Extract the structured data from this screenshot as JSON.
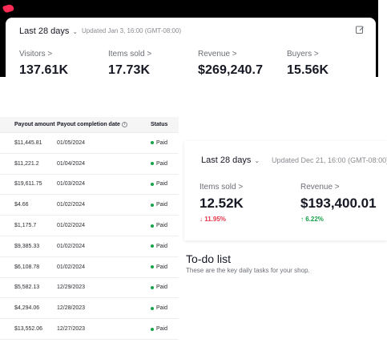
{
  "panel1": {
    "range_label": "Last 28 days",
    "updated": "Updated Jan 3, 16:00 (GMT-08:00)",
    "metrics": [
      {
        "label": "Visitors >",
        "value": "137.61K"
      },
      {
        "label": "Items sold >",
        "value": "17.73K"
      },
      {
        "label": "Revenue >",
        "value": "$269,240.7"
      },
      {
        "label": "Buyers >",
        "value": "15.56K"
      }
    ]
  },
  "payouts": {
    "headers": {
      "amount": "Payout amount",
      "date": "Payout completion date",
      "info_glyph": "i",
      "status": "Status"
    },
    "rows": [
      {
        "amount": "$11,445.81",
        "date": "01/05/2024",
        "status": "Paid"
      },
      {
        "amount": "$11,221.2",
        "date": "01/04/2024",
        "status": "Paid"
      },
      {
        "amount": "$19,611.75",
        "date": "01/03/2024",
        "status": "Paid"
      },
      {
        "amount": "$4.66",
        "date": "01/02/2024",
        "status": "Paid"
      },
      {
        "amount": "$1,175.7",
        "date": "01/02/2024",
        "status": "Paid"
      },
      {
        "amount": "$9,385.33",
        "date": "01/02/2024",
        "status": "Paid"
      },
      {
        "amount": "$6,108.78",
        "date": "01/02/2024",
        "status": "Paid"
      },
      {
        "amount": "$5,582.13",
        "date": "12/29/2023",
        "status": "Paid"
      },
      {
        "amount": "$4,294.06",
        "date": "12/28/2023",
        "status": "Paid"
      },
      {
        "amount": "$13,552.06",
        "date": "12/27/2023",
        "status": "Paid"
      }
    ],
    "status_color": "#16a34a"
  },
  "panel3": {
    "range_label": "Last 28 days",
    "updated": "Updated Dec 21, 16:00 (GMT-08:00)",
    "metrics": [
      {
        "label": "Items sold >",
        "value": "12.52K",
        "change": "↓ 11.95%"
      },
      {
        "label": "Revenue >",
        "value": "$193,400.01",
        "change": "↑ 6.22%"
      }
    ],
    "todo_title": "To-do list",
    "todo_subtitle": "These are the key daily tasks for your shop."
  },
  "colors": {
    "brand": "#fe2c55",
    "down": "#e5374b",
    "up": "#17a34a"
  },
  "icons": [
    "brand-logo-icon",
    "chevron-down-icon",
    "edit-icon",
    "info-icon",
    "status-dot-icon"
  ]
}
